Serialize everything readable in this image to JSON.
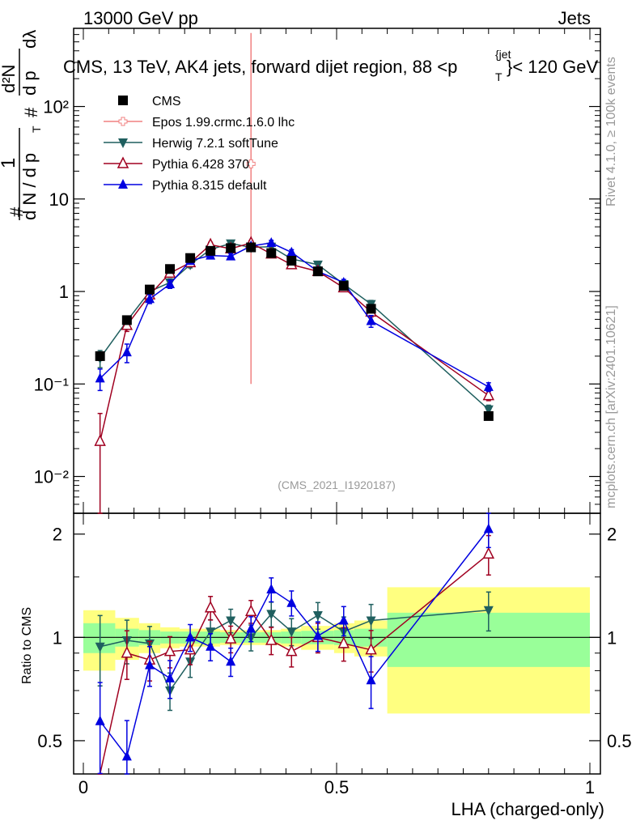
{
  "header": {
    "energy_label": "13000 GeV pp",
    "category_label": "Jets",
    "plot_title": "CMS, 13 TeV, AK4 jets, forward dijet region, 88 <p",
    "plot_title_sup": "{jet",
    "plot_title_sub": "T",
    "plot_title_tail": "}< 120 GeV",
    "analysis_id": "(CMS_2021_I1920187)"
  },
  "side_labels": {
    "rivet_label": "Rivet 4.1.0, ≥ 100k events",
    "mcplots_label": "mcplots.cern.ch [arXiv:2401.10621]"
  },
  "y_axis_main": {
    "hash1": "#",
    "one": "1",
    "dN_over_dpT": "d N / d p",
    "T": "T",
    "hash2": "#",
    "d2N": "d²N",
    "dpTdl": "d p",
    "dl": "dλ",
    "ticks": [
      "10⁻²",
      "10⁻¹",
      "1",
      "10",
      "10²"
    ]
  },
  "ratio_axis": {
    "ylabel": "Ratio to CMS",
    "ticks": [
      "0.5",
      "1",
      "2"
    ]
  },
  "x_axis": {
    "label": "LHA (charged-only)",
    "ticks": [
      "0",
      "0.5",
      "1"
    ]
  },
  "legend": [
    {
      "name": "CMS",
      "color": "#000000",
      "marker": "square-filled"
    },
    {
      "name": "Epos 1.99.crmc.1.6.0 lhc",
      "color": "#f08080",
      "marker": "open-cross"
    },
    {
      "name": "Herwig 7.2.1 softTune",
      "color": "#1f5f5f",
      "marker": "triangle-down-filled"
    },
    {
      "name": "Pythia 6.428 370",
      "color": "#a00020",
      "marker": "triangle-open"
    },
    {
      "name": "Pythia 8.315 default",
      "color": "#0000e0",
      "marker": "triangle-filled"
    }
  ],
  "chart_data": {
    "type": "line",
    "title": "CMS, 13 TeV, AK4 jets, forward dijet region, 88 < pT jet < 120 GeV",
    "xlabel": "LHA (charged-only)",
    "ylabel": "1/(dN/dpT) d2N/(dpT dLHA)",
    "xlim": [
      0,
      1
    ],
    "ylim": [
      0.004,
      700
    ],
    "yscale": "log",
    "ratio_ylim": [
      0.4,
      2.3
    ],
    "x": [
      0.033,
      0.086,
      0.131,
      0.171,
      0.211,
      0.251,
      0.291,
      0.331,
      0.371,
      0.411,
      0.463,
      0.514,
      0.568,
      0.8
    ],
    "bin_edges": [
      0.0,
      0.063,
      0.11,
      0.152,
      0.19,
      0.23,
      0.27,
      0.31,
      0.35,
      0.39,
      0.43,
      0.495,
      0.535,
      0.6,
      1.0
    ],
    "series": [
      {
        "name": "CMS",
        "values": [
          0.2,
          0.49,
          1.05,
          1.75,
          2.3,
          2.75,
          2.95,
          3.0,
          2.6,
          2.15,
          1.65,
          1.15,
          0.65,
          0.045
        ],
        "err_lo": [
          0.02,
          0.04,
          0.06,
          0.1,
          0.12,
          0.14,
          0.15,
          0.15,
          0.13,
          0.11,
          0.08,
          0.06,
          0.04,
          0.004
        ],
        "err_hi": [
          0.02,
          0.04,
          0.06,
          0.1,
          0.12,
          0.14,
          0.15,
          0.15,
          0.13,
          0.11,
          0.08,
          0.06,
          0.04,
          0.004
        ],
        "ratio_band_green": [
          0.1,
          0.06,
          0.05,
          0.04,
          0.04,
          0.04,
          0.035,
          0.035,
          0.035,
          0.04,
          0.045,
          0.05,
          0.06,
          0.18
        ],
        "ratio_band_yellow": [
          0.2,
          0.14,
          0.1,
          0.07,
          0.06,
          0.06,
          0.05,
          0.05,
          0.05,
          0.06,
          0.08,
          0.1,
          0.12,
          0.4
        ]
      },
      {
        "name": "Epos 1.99.crmc.1.6.0 lhc",
        "x": [
          0.331
        ],
        "values": [
          24
        ],
        "err_lo": [
          23.9
        ],
        "err_hi": [
          600
        ]
      },
      {
        "name": "Herwig 7.2.1 softTune",
        "values": [
          0.19,
          0.48,
          1.0,
          1.25,
          1.95,
          2.85,
          3.3,
          3.0,
          3.05,
          2.25,
          1.95,
          1.2,
          0.73,
          0.053
        ],
        "err_lo": [
          0.04,
          0.06,
          0.1,
          0.12,
          0.15,
          0.18,
          0.2,
          0.2,
          0.2,
          0.16,
          0.14,
          0.1,
          0.07,
          0.006
        ],
        "err_hi": [
          0.04,
          0.06,
          0.1,
          0.12,
          0.15,
          0.18,
          0.2,
          0.2,
          0.2,
          0.16,
          0.14,
          0.1,
          0.07,
          0.006
        ],
        "ratio": [
          0.94,
          0.98,
          0.96,
          0.7,
          0.85,
          1.04,
          1.12,
          1.0,
          1.17,
          1.04,
          1.16,
          1.04,
          1.12,
          1.2
        ]
      },
      {
        "name": "Pythia 6.428 370",
        "values": [
          0.024,
          0.43,
          0.92,
          1.58,
          2.05,
          3.2,
          2.9,
          3.35,
          2.55,
          1.95,
          1.65,
          1.1,
          0.6,
          0.075
        ],
        "err_lo": [
          0.024,
          0.06,
          0.1,
          0.13,
          0.15,
          0.2,
          0.2,
          0.2,
          0.18,
          0.15,
          0.13,
          0.1,
          0.07,
          0.009
        ],
        "err_hi": [
          0.024,
          0.06,
          0.1,
          0.13,
          0.15,
          0.2,
          0.2,
          0.2,
          0.18,
          0.15,
          0.13,
          0.1,
          0.07,
          0.009
        ],
        "ratio": [
          0.12,
          0.9,
          0.86,
          0.91,
          0.92,
          1.22,
          0.99,
          1.19,
          0.98,
          0.91,
          1.0,
          0.96,
          0.92,
          1.75
        ]
      },
      {
        "name": "Pythia 8.315 default",
        "values": [
          0.115,
          0.22,
          0.83,
          1.2,
          2.15,
          2.45,
          2.4,
          3.1,
          3.35,
          2.65,
          1.65,
          1.25,
          0.48,
          0.093
        ],
        "err_lo": [
          0.03,
          0.05,
          0.09,
          0.12,
          0.15,
          0.17,
          0.17,
          0.2,
          0.22,
          0.18,
          0.13,
          0.1,
          0.07,
          0.01
        ],
        "err_hi": [
          0.03,
          0.05,
          0.09,
          0.12,
          0.15,
          0.17,
          0.17,
          0.2,
          0.22,
          0.18,
          0.13,
          0.1,
          0.07,
          0.01
        ],
        "ratio": [
          0.57,
          0.45,
          0.83,
          0.76,
          1.0,
          0.94,
          0.85,
          1.06,
          1.38,
          1.26,
          1.01,
          1.12,
          0.75,
          2.07
        ]
      }
    ]
  }
}
